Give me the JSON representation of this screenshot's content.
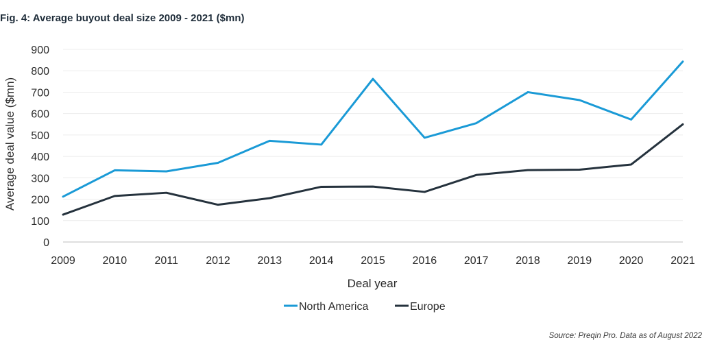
{
  "figure": {
    "title": "Fig. 4: Average buyout deal size 2009 - 2021 ($mn)",
    "source": "Source: Preqin Pro. Data as of August 2022"
  },
  "chart_data": {
    "type": "line",
    "title": "Fig. 4: Average buyout deal size 2009 - 2021 ($mn)",
    "xlabel": "Deal year",
    "ylabel": "Average deal value ($mn)",
    "ylim": [
      0,
      900
    ],
    "yticks": [
      0,
      100,
      200,
      300,
      400,
      500,
      600,
      700,
      800,
      900
    ],
    "grid": true,
    "legend_position": "bottom-center",
    "x": [
      "2009",
      "2010",
      "2011",
      "2012",
      "2013",
      "2014",
      "2015",
      "2016",
      "2017",
      "2018",
      "2019",
      "2020",
      "2021"
    ],
    "series": [
      {
        "name": "North America",
        "color": "#1a9ad6",
        "values": [
          212,
          335,
          330,
          370,
          473,
          455,
          762,
          487,
          555,
          700,
          663,
          572,
          843
        ]
      },
      {
        "name": "Europe",
        "color": "#25323d",
        "values": [
          128,
          215,
          230,
          174,
          205,
          258,
          259,
          234,
          313,
          336,
          338,
          362,
          550
        ]
      }
    ]
  }
}
